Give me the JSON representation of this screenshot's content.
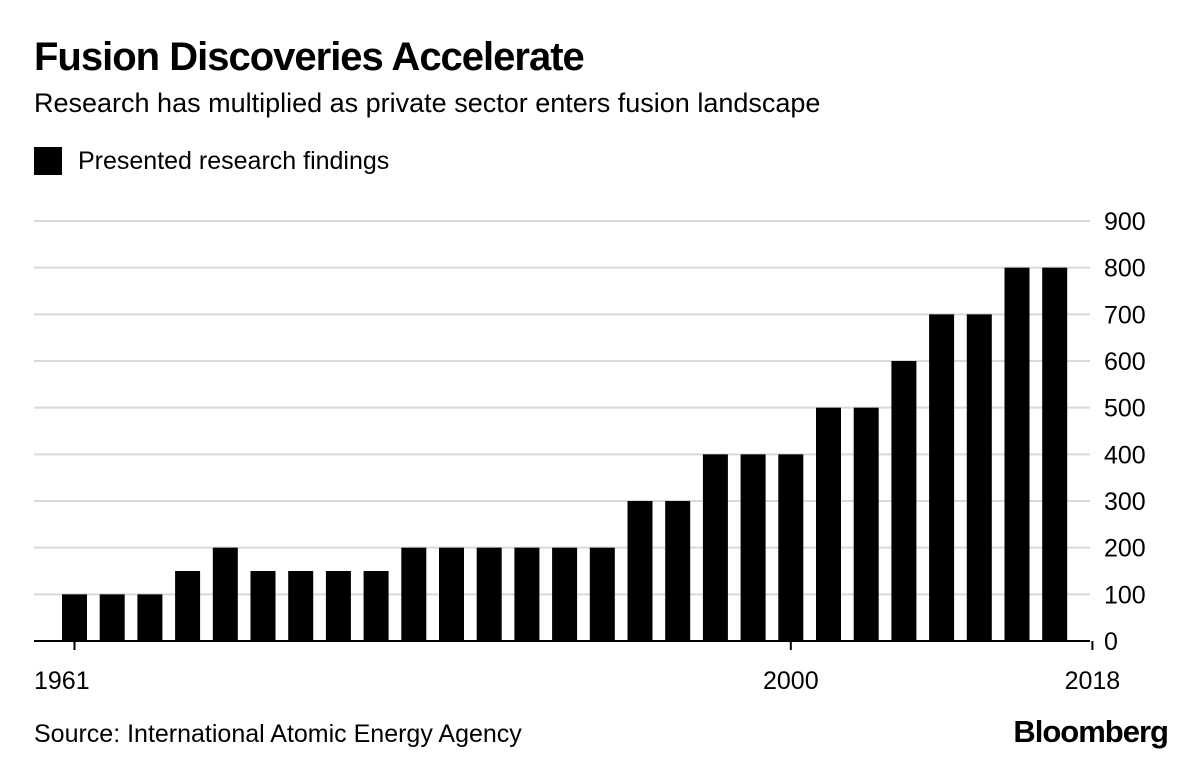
{
  "colors": {
    "bar": "#000000",
    "grid": "#d9d9d9",
    "axis": "#000000",
    "background": "#ffffff"
  },
  "chart_data": {
    "type": "bar",
    "title": "Fusion Discoveries Accelerate",
    "subtitle": "Research has multiplied as private sector enters fusion landscape",
    "legend": [
      {
        "label": "Presented research findings",
        "color": "#000000"
      }
    ],
    "legend_position": "top-left",
    "x_tick_labels": [
      "1961",
      "2000",
      "2018"
    ],
    "x_tick_indices": [
      0,
      19,
      27
    ],
    "values": [
      100,
      100,
      100,
      150,
      200,
      150,
      150,
      150,
      150,
      200,
      200,
      200,
      200,
      200,
      200,
      300,
      300,
      400,
      400,
      400,
      500,
      500,
      600,
      700,
      700,
      800,
      800
    ],
    "ylim": [
      0,
      900
    ],
    "y_ticks": [
      0,
      100,
      200,
      300,
      400,
      500,
      600,
      700,
      800,
      900
    ],
    "y_axis_side": "right",
    "grid": true,
    "xlabel": "",
    "ylabel": ""
  },
  "footer": {
    "source": "Source: International Atomic Energy Agency",
    "brand": "Bloomberg"
  }
}
